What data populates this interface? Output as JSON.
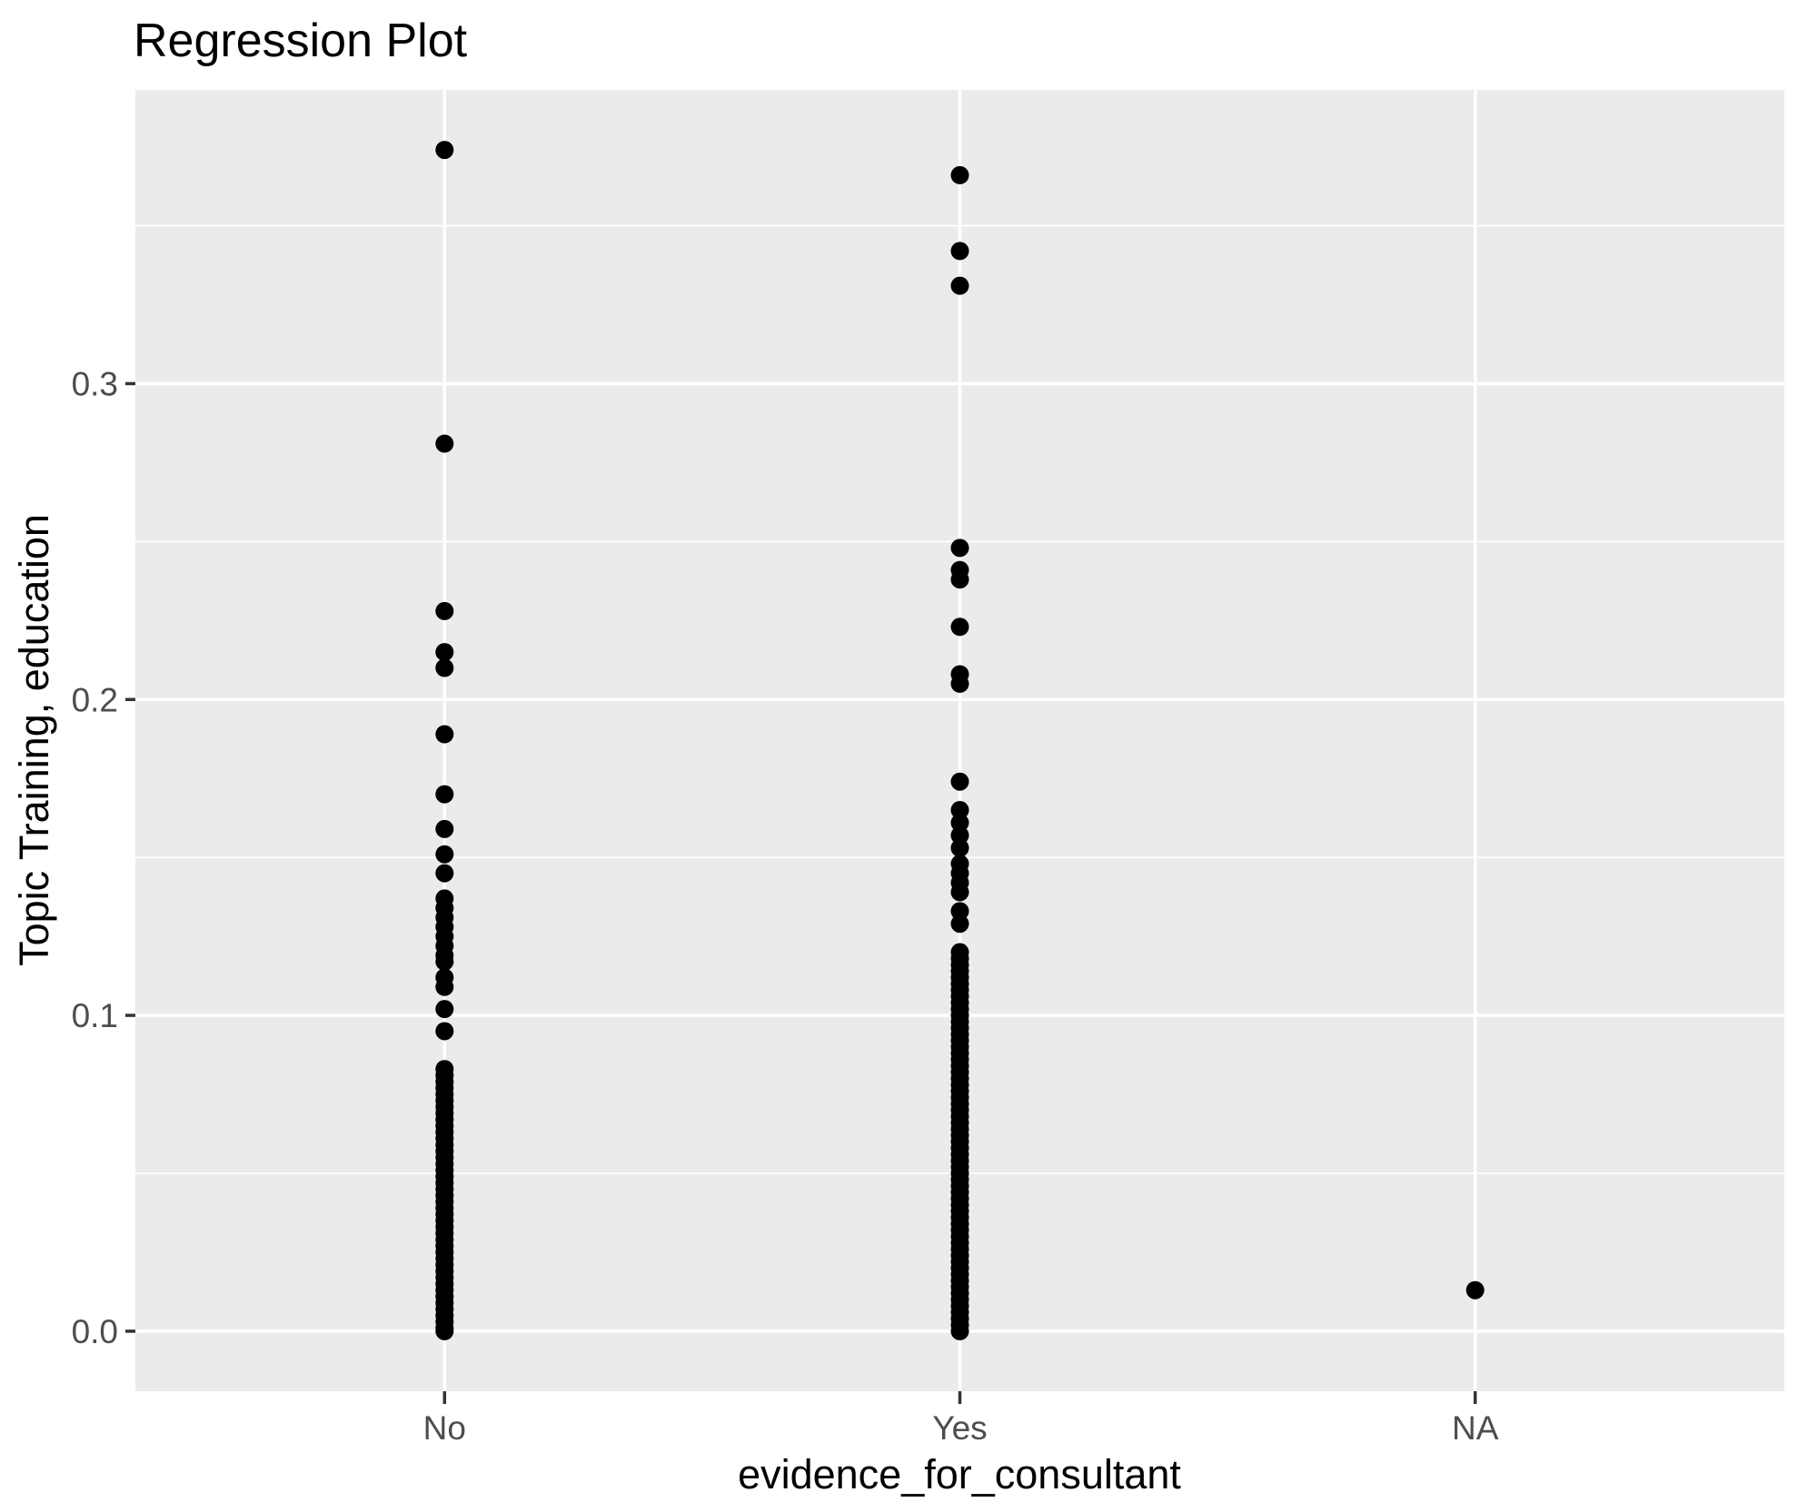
{
  "chart_data": {
    "type": "scatter",
    "title": "Regression Plot",
    "xlabel": "evidence_for_consultant",
    "ylabel": "Topic Training, education",
    "categories": [
      "No",
      "Yes",
      "NA"
    ],
    "y_ticks": [
      0.0,
      0.1,
      0.2,
      0.3
    ],
    "y_tick_labels": [
      "0.0",
      "0.1",
      "0.2",
      "0.3"
    ],
    "y_minor_ticks": [
      0.05,
      0.15,
      0.25,
      0.35
    ],
    "ylim": [
      -0.019,
      0.393
    ],
    "grid": "major-and-minor-white-on-grey",
    "legend_position": "none",
    "series": [
      {
        "name": "No",
        "values": [
          0.374,
          0.281,
          0.228,
          0.215,
          0.21,
          0.189,
          0.17,
          0.159,
          0.151,
          0.145,
          0.137,
          0.134,
          0.131,
          0.128,
          0.125,
          0.122,
          0.119,
          0.117,
          0.112,
          0.109,
          0.102,
          0.095,
          0.083,
          0.081,
          0.079,
          0.077,
          0.075,
          0.073,
          0.071,
          0.069,
          0.067,
          0.065,
          0.063,
          0.061,
          0.059,
          0.057,
          0.055,
          0.053,
          0.051,
          0.049,
          0.047,
          0.045,
          0.043,
          0.041,
          0.039,
          0.037,
          0.035,
          0.033,
          0.031,
          0.029,
          0.027,
          0.025,
          0.023,
          0.021,
          0.019,
          0.017,
          0.015,
          0.013,
          0.011,
          0.009,
          0.007,
          0.005,
          0.003,
          0.001,
          0.0
        ]
      },
      {
        "name": "Yes",
        "values": [
          0.366,
          0.342,
          0.331,
          0.248,
          0.241,
          0.238,
          0.223,
          0.208,
          0.205,
          0.174,
          0.165,
          0.161,
          0.157,
          0.153,
          0.148,
          0.145,
          0.142,
          0.139,
          0.133,
          0.129,
          0.12,
          0.118,
          0.116,
          0.114,
          0.112,
          0.11,
          0.108,
          0.106,
          0.104,
          0.102,
          0.1,
          0.098,
          0.096,
          0.094,
          0.092,
          0.09,
          0.088,
          0.086,
          0.084,
          0.082,
          0.08,
          0.078,
          0.076,
          0.074,
          0.072,
          0.07,
          0.068,
          0.066,
          0.064,
          0.062,
          0.06,
          0.058,
          0.056,
          0.054,
          0.052,
          0.05,
          0.048,
          0.046,
          0.044,
          0.042,
          0.04,
          0.038,
          0.036,
          0.034,
          0.032,
          0.03,
          0.028,
          0.026,
          0.024,
          0.022,
          0.02,
          0.018,
          0.016,
          0.014,
          0.012,
          0.01,
          0.008,
          0.006,
          0.004,
          0.002,
          0.0
        ]
      },
      {
        "name": "NA",
        "values": [
          0.013
        ]
      }
    ],
    "colors": {
      "panel_background": "#EBEBEB",
      "gridline": "#FFFFFF",
      "point": "#000000",
      "tick_mark": "#333333",
      "tick_label_text": "#4D4D4D",
      "axis_title_text": "#000000",
      "plot_title_text": "#000000",
      "page_background": "#FFFFFF"
    }
  }
}
